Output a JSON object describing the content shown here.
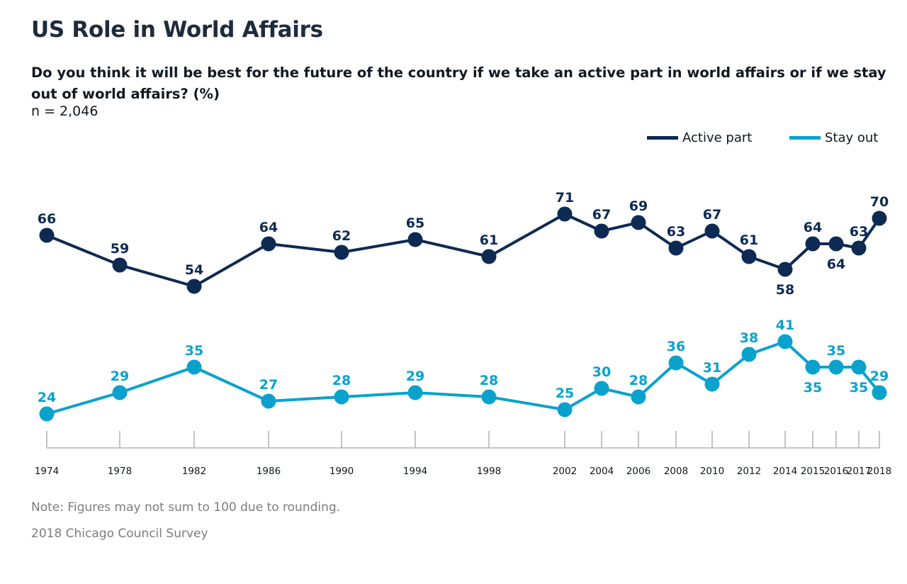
{
  "header": {
    "title": "US Role in World Affairs",
    "subtitle": "Do you think it will be best for the future of the country if we take an active part in world affairs or if we stay out of world affairs? (%)",
    "sample": "n = 2,046"
  },
  "footer": {
    "note": "Note: Figures may not sum to 100 due to rounding.",
    "source": "2018 Chicago Council Survey"
  },
  "chart_data": {
    "type": "line",
    "title": "US Role in World Affairs",
    "subtitle": "Do you think it will be best for the future of the country if we take an active part in world affairs or if we stay out of world affairs? (%)",
    "x": [
      "1974",
      "1978",
      "1982",
      "1986",
      "1990",
      "1994",
      "1998",
      "2002",
      "2004",
      "2006",
      "2008",
      "2010",
      "2012",
      "2014",
      "2015",
      "2016",
      "2017",
      "2018"
    ],
    "series": [
      {
        "name": "Active part",
        "color": "#0d2a52",
        "values": [
          66,
          59,
          54,
          64,
          62,
          65,
          61,
          71,
          67,
          69,
          63,
          67,
          61,
          58,
          64,
          64,
          63,
          70
        ],
        "label_pos": [
          "above",
          "above",
          "above",
          "above",
          "above",
          "above",
          "above",
          "above",
          "above",
          "above",
          "above",
          "above",
          "above",
          "below",
          "above",
          "below",
          "above",
          "above"
        ]
      },
      {
        "name": "Stay out",
        "color": "#0aa2cc",
        "values": [
          24,
          29,
          35,
          27,
          28,
          29,
          28,
          25,
          30,
          28,
          36,
          31,
          38,
          41,
          35,
          35,
          35,
          29
        ],
        "label_pos": [
          "above",
          "above",
          "above",
          "above",
          "above",
          "above",
          "above",
          "above",
          "above",
          "above",
          "above",
          "above",
          "above",
          "above",
          "below",
          "above",
          "below",
          "above"
        ]
      }
    ],
    "legend": "top-right",
    "grid": false,
    "xlabel": "",
    "ylabel": ""
  }
}
